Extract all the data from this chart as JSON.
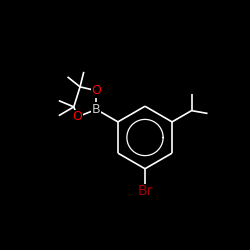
{
  "bg_color": "#000000",
  "bond_color": "#ffffff",
  "atom_colors": {
    "O": "#ff0000",
    "B": "#c8c8c8",
    "Br": "#a00000"
  },
  "font_size_atom": 9,
  "font_size_br": 10,
  "figsize": [
    2.5,
    2.5
  ],
  "dpi": 100,
  "lw": 1.2
}
